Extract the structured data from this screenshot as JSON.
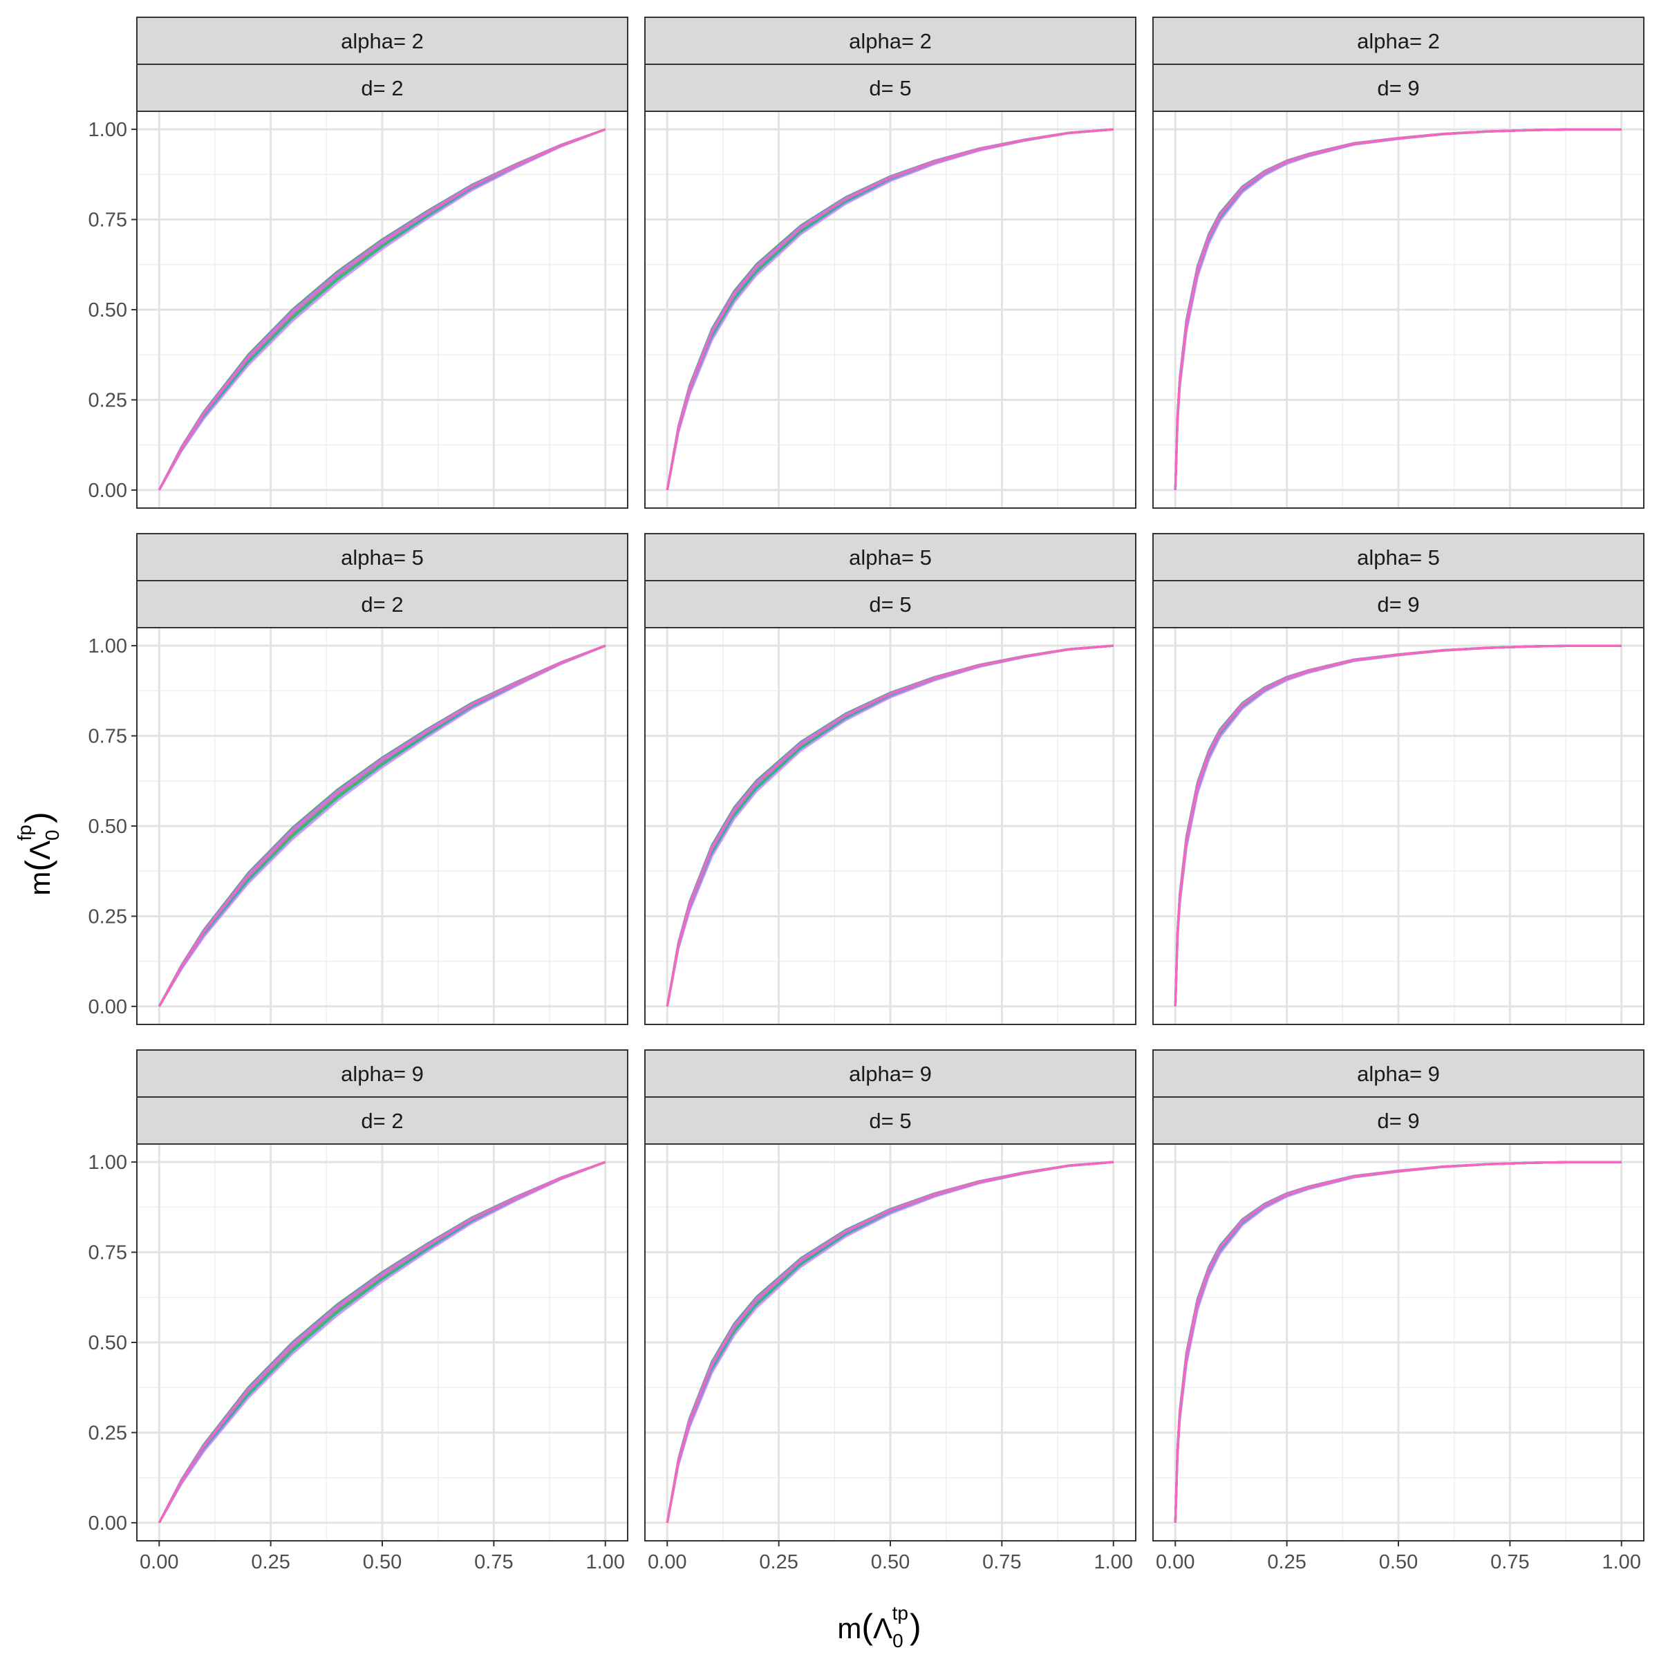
{
  "chart_data": {
    "type": "line",
    "x_label": {
      "prefix": "m",
      "symbol": "Λ",
      "sub": "0",
      "sup": "tp"
    },
    "y_label": {
      "prefix": "m",
      "symbol": "Λ",
      "sub": "0",
      "sup": "fp"
    },
    "xlim": [
      0,
      1
    ],
    "ylim": [
      0,
      1
    ],
    "x_ticks": [
      0,
      0.25,
      0.5,
      0.75,
      1
    ],
    "y_ticks": [
      0,
      0.25,
      0.5,
      0.75,
      1
    ],
    "x_tick_labels": [
      "0.00",
      "0.25",
      "0.50",
      "0.75",
      "1.00"
    ],
    "y_tick_labels": [
      "0.00",
      "0.25",
      "0.50",
      "0.75",
      "1.00"
    ],
    "grid": true,
    "legend": "none",
    "row_strip": {
      "prefix": "alpha= ",
      "values": [
        "2",
        "5",
        "9"
      ]
    },
    "col_strip": {
      "prefix": "d= ",
      "values": [
        "2",
        "5",
        "9"
      ]
    },
    "series_colors": [
      "#f8766d",
      "#de8c00",
      "#b79f00",
      "#7cae00",
      "#00ba38",
      "#00c08b",
      "#00bfc4",
      "#00b4f0",
      "#619cff",
      "#c77cff",
      "#f564e3",
      "#ff64b0"
    ],
    "panels": [
      {
        "alpha": "2",
        "d": "2",
        "x": [
          0,
          0.05,
          0.1,
          0.2,
          0.3,
          0.4,
          0.5,
          0.6,
          0.7,
          0.8,
          0.9,
          1.0
        ],
        "y": [
          0,
          0.115,
          0.21,
          0.365,
          0.49,
          0.595,
          0.685,
          0.765,
          0.84,
          0.9,
          0.955,
          1.0
        ]
      },
      {
        "alpha": "2",
        "d": "5",
        "x": [
          0,
          0.025,
          0.05,
          0.1,
          0.15,
          0.2,
          0.3,
          0.4,
          0.5,
          0.6,
          0.7,
          0.8,
          0.9,
          1.0
        ],
        "y": [
          0,
          0.17,
          0.28,
          0.435,
          0.54,
          0.615,
          0.725,
          0.805,
          0.865,
          0.91,
          0.945,
          0.97,
          0.99,
          1.0
        ]
      },
      {
        "alpha": "2",
        "d": "9",
        "x": [
          0,
          0.005,
          0.01,
          0.025,
          0.05,
          0.075,
          0.1,
          0.15,
          0.2,
          0.25,
          0.3,
          0.4,
          0.5,
          0.6,
          0.7,
          0.8,
          0.9,
          1.0
        ],
        "y": [
          0,
          0.2,
          0.3,
          0.46,
          0.61,
          0.7,
          0.76,
          0.835,
          0.88,
          0.91,
          0.93,
          0.96,
          0.975,
          0.987,
          0.994,
          0.998,
          1.0,
          1.0
        ]
      },
      {
        "alpha": "5",
        "d": "2",
        "x": [
          0,
          0.05,
          0.1,
          0.2,
          0.3,
          0.4,
          0.5,
          0.6,
          0.7,
          0.8,
          0.9,
          1.0
        ],
        "y": [
          0,
          0.11,
          0.205,
          0.36,
          0.485,
          0.59,
          0.68,
          0.76,
          0.835,
          0.895,
          0.952,
          1.0
        ]
      },
      {
        "alpha": "5",
        "d": "5",
        "x": [
          0,
          0.025,
          0.05,
          0.1,
          0.15,
          0.2,
          0.3,
          0.4,
          0.5,
          0.6,
          0.7,
          0.8,
          0.9,
          1.0
        ],
        "y": [
          0,
          0.17,
          0.28,
          0.435,
          0.54,
          0.615,
          0.725,
          0.805,
          0.865,
          0.91,
          0.945,
          0.97,
          0.99,
          1.0
        ]
      },
      {
        "alpha": "5",
        "d": "9",
        "x": [
          0,
          0.005,
          0.01,
          0.025,
          0.05,
          0.075,
          0.1,
          0.15,
          0.2,
          0.25,
          0.3,
          0.4,
          0.5,
          0.6,
          0.7,
          0.8,
          0.9,
          1.0
        ],
        "y": [
          0,
          0.2,
          0.3,
          0.46,
          0.61,
          0.7,
          0.76,
          0.835,
          0.88,
          0.91,
          0.93,
          0.96,
          0.975,
          0.987,
          0.994,
          0.998,
          1.0,
          1.0
        ]
      },
      {
        "alpha": "9",
        "d": "2",
        "x": [
          0,
          0.05,
          0.1,
          0.2,
          0.3,
          0.4,
          0.5,
          0.6,
          0.7,
          0.8,
          0.9,
          1.0
        ],
        "y": [
          0,
          0.115,
          0.21,
          0.365,
          0.49,
          0.595,
          0.685,
          0.765,
          0.84,
          0.9,
          0.955,
          1.0
        ]
      },
      {
        "alpha": "9",
        "d": "5",
        "x": [
          0,
          0.025,
          0.05,
          0.1,
          0.15,
          0.2,
          0.3,
          0.4,
          0.5,
          0.6,
          0.7,
          0.8,
          0.9,
          1.0
        ],
        "y": [
          0,
          0.17,
          0.28,
          0.435,
          0.54,
          0.615,
          0.725,
          0.805,
          0.865,
          0.91,
          0.945,
          0.97,
          0.99,
          1.0
        ]
      },
      {
        "alpha": "9",
        "d": "9",
        "x": [
          0,
          0.005,
          0.01,
          0.025,
          0.05,
          0.075,
          0.1,
          0.15,
          0.2,
          0.25,
          0.3,
          0.4,
          0.5,
          0.6,
          0.7,
          0.8,
          0.9,
          1.0
        ],
        "y": [
          0,
          0.2,
          0.3,
          0.46,
          0.61,
          0.7,
          0.76,
          0.835,
          0.88,
          0.91,
          0.93,
          0.96,
          0.975,
          0.987,
          0.994,
          0.998,
          1.0,
          1.0
        ]
      }
    ]
  }
}
